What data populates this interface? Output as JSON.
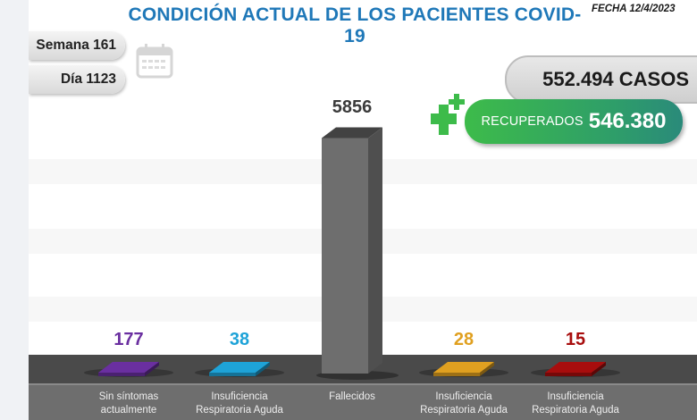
{
  "header": {
    "title": "CONDICIÓN ACTUAL DE LOS PACIENTES COVID-19",
    "fecha": "FECHA 12/4/2023"
  },
  "info": {
    "semana": "Semana 161",
    "dia": "Día 1123"
  },
  "summary": {
    "casos": "552.494 CASOS",
    "recuperados_label": "RECUPERADOS",
    "recuperados_value": "546.380"
  },
  "colors": {
    "title": "#1f78b8",
    "sin_sintomas": "#6a2fa0",
    "insuf_1": "#1ea3d8",
    "fallecidos": "#6e6e6e",
    "insuf_2": "#e0a020",
    "insuf_3": "#a80d0d",
    "recuperados": "#3dbb4a"
  },
  "chart_data": {
    "type": "bar",
    "title": "CONDICIÓN ACTUAL DE LOS PACIENTES COVID-19",
    "xlabel": "",
    "ylabel": "",
    "categories": [
      "Sin síntomas actualmente",
      "Insuficiencia Respiratoria Aguda",
      "Fallecidos",
      "Insuficiencia Respiratoria Aguda",
      "Insuficiencia Respiratoria Aguda"
    ],
    "category_lines": [
      [
        "Sin síntomas",
        "actualmente"
      ],
      [
        "Insuficiencia",
        "Respiratoria Aguda"
      ],
      [
        "Fallecidos",
        ""
      ],
      [
        "Insuficiencia",
        "Respiratoria Aguda"
      ],
      [
        "Insuficiencia",
        "Respiratoria Aguda"
      ]
    ],
    "values": [
      177,
      38,
      5856,
      28,
      15
    ],
    "value_labels": [
      "177",
      "38",
      "5856",
      "28",
      "15"
    ],
    "bar_colors": [
      "#6a2fa0",
      "#1ea3d8",
      "#6e6e6e",
      "#e0a020",
      "#a80d0d"
    ],
    "label_colors": [
      "#6a2fa0",
      "#1ea3d8",
      "#3a3a3a",
      "#e0a020",
      "#a80d0d"
    ],
    "ylim": [
      0,
      6000
    ],
    "grid": true,
    "legend": "none"
  }
}
